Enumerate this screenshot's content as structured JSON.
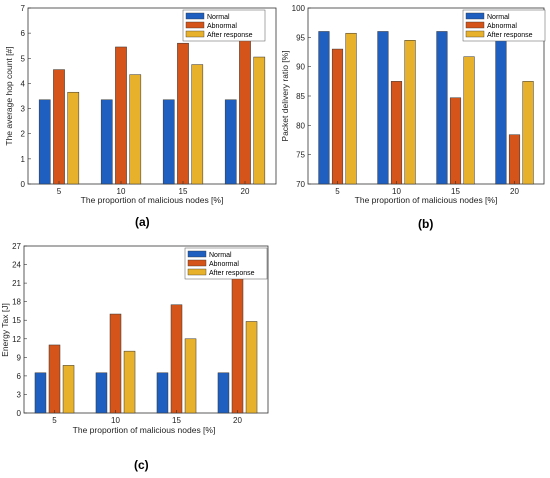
{
  "colors": {
    "normal": "#1f5fbf",
    "abnormal": "#d4541a",
    "after_response": "#e8b12c"
  },
  "chart_data": [
    {
      "panel": "(a)",
      "type": "bar",
      "categories": [
        "5",
        "10",
        "15",
        "20"
      ],
      "series": [
        {
          "name": "Normal",
          "values": [
            3.35,
            3.35,
            3.35,
            3.35
          ]
        },
        {
          "name": "Abnormal",
          "values": [
            4.55,
            5.45,
            5.6,
            5.9
          ]
        },
        {
          "name": "After response",
          "values": [
            3.65,
            4.35,
            4.75,
            5.05
          ]
        }
      ],
      "xlabel": "The proportion of malicious nodes [%]",
      "ylabel": "The average hop count [#]",
      "ylim": [
        0,
        7
      ],
      "yticks": [
        "0",
        "1",
        "2",
        "3",
        "4",
        "5",
        "6",
        "7"
      ],
      "legend": "top-right",
      "grid": false
    },
    {
      "panel": "(b)",
      "type": "bar",
      "categories": [
        "5",
        "10",
        "15",
        "20"
      ],
      "series": [
        {
          "name": "Normal",
          "values": [
            96,
            96,
            96,
            96
          ]
        },
        {
          "name": "Abnormal",
          "values": [
            93,
            87.5,
            84.7,
            78.4
          ]
        },
        {
          "name": "After response",
          "values": [
            95.7,
            94.5,
            91.7,
            87.5
          ]
        }
      ],
      "xlabel": "The proportion of malicious nodes [%]",
      "ylabel": "Packet delivery ratio [%]",
      "ylim": [
        70,
        100
      ],
      "yticks": [
        "70",
        "75",
        "80",
        "85",
        "90",
        "95",
        "100"
      ],
      "legend": "top-right",
      "grid": false
    },
    {
      "panel": "(c)",
      "type": "bar",
      "categories": [
        "5",
        "10",
        "15",
        "20"
      ],
      "series": [
        {
          "name": "Normal",
          "values": [
            6.5,
            6.5,
            6.5,
            6.5
          ]
        },
        {
          "name": "Abnormal",
          "values": [
            11,
            16,
            17.5,
            22
          ]
        },
        {
          "name": "After response",
          "values": [
            7.7,
            10,
            12,
            14.8
          ]
        }
      ],
      "xlabel": "The proportion of malicious nodes [%]",
      "ylabel": "Energy Tax [J]",
      "ylim": [
        0,
        27
      ],
      "yticks": [
        "0",
        "3",
        "6",
        "9",
        "12",
        "15",
        "18",
        "21",
        "24",
        "27"
      ],
      "legend": "top-right",
      "grid": false
    }
  ]
}
